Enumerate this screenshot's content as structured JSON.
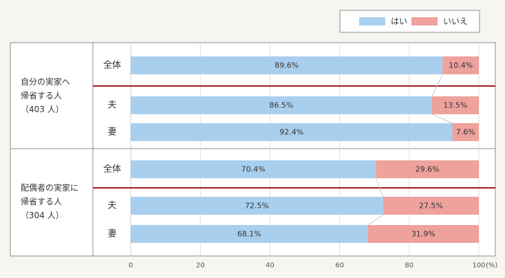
{
  "chart_data": {
    "type": "bar",
    "orientation": "horizontal",
    "stacked": true,
    "xlim": [
      0,
      100
    ],
    "xticks": [
      "0",
      "20",
      "40",
      "60",
      "80",
      "100"
    ],
    "xunit": "(%)",
    "grid": true,
    "legend_position": "top-right",
    "series": [
      {
        "name": "はい",
        "color": "#a9cfee"
      },
      {
        "name": "いいえ",
        "color": "#efa19c"
      }
    ],
    "groups": [
      {
        "label_lines": [
          "自分の実家へ",
          "帰省する人",
          "（403 人）"
        ],
        "rows": [
          {
            "label": "全体",
            "values": [
              89.6,
              10.4
            ],
            "value_labels": [
              "89.6%",
              "10.4%"
            ]
          },
          {
            "label": "夫",
            "values": [
              86.5,
              13.5
            ],
            "value_labels": [
              "86.5%",
              "13.5%"
            ]
          },
          {
            "label": "妻",
            "values": [
              92.4,
              7.6
            ],
            "value_labels": [
              "92.4%",
              "7.6%"
            ]
          }
        ]
      },
      {
        "label_lines": [
          "配偶者の実家に",
          "帰省する人",
          "（304 人）"
        ],
        "rows": [
          {
            "label": "全体",
            "values": [
              70.4,
              29.6
            ],
            "value_labels": [
              "70.4%",
              "29.6%"
            ]
          },
          {
            "label": "夫",
            "values": [
              72.5,
              27.5
            ],
            "value_labels": [
              "72.5%",
              "27.5%"
            ]
          },
          {
            "label": "妻",
            "values": [
              68.1,
              31.9
            ],
            "value_labels": [
              "68.1%",
              "31.9%"
            ]
          }
        ]
      }
    ],
    "colors": {
      "background": "#f6f5ef",
      "panel": "#ffffff",
      "border": "#8c8c8c",
      "grid": "#dddddd",
      "divider": "#9e1b1b",
      "connector": "#c8c8c8"
    }
  }
}
